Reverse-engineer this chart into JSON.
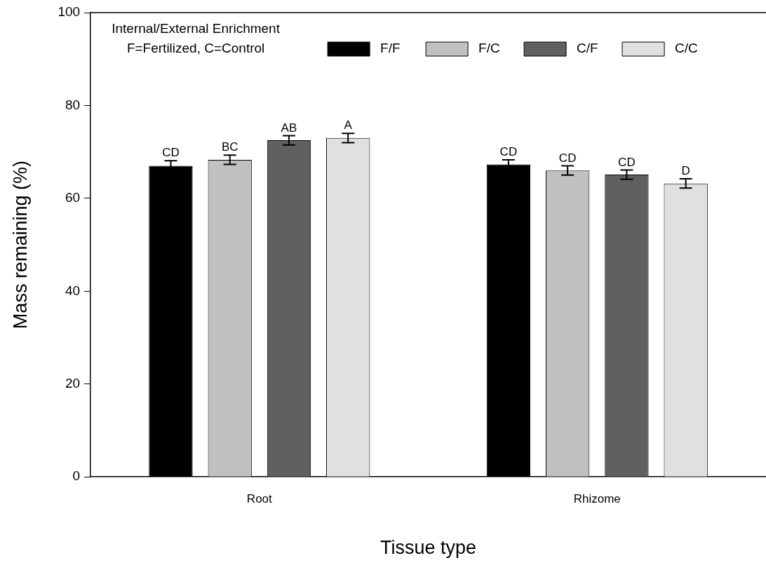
{
  "chart_data": {
    "type": "bar",
    "xlabel": "Tissue type",
    "ylabel": "Mass remaining (%)",
    "legend_title": "Internal/External Enrichment\nF=Fertilized, C=Control",
    "categories": [
      "Root",
      "Rhizome"
    ],
    "series": [
      {
        "name": "F/F",
        "color": "#000000",
        "values": [
          67.0,
          67.3
        ],
        "errors": [
          1.1,
          1.0
        ],
        "value_labels": [
          "CD",
          "CD"
        ]
      },
      {
        "name": "F/C",
        "color": "#c0c0c0",
        "values": [
          68.3,
          66.0
        ],
        "errors": [
          1.0,
          1.0
        ],
        "value_labels": [
          "BC",
          "CD"
        ]
      },
      {
        "name": "C/F",
        "color": "#606060",
        "values": [
          72.5,
          65.1
        ],
        "errors": [
          1.0,
          1.0
        ],
        "value_labels": [
          "AB",
          "CD"
        ]
      },
      {
        "name": "C/C",
        "color": "#e0e0e0",
        "values": [
          73.0,
          63.2
        ],
        "errors": [
          1.0,
          1.0
        ],
        "value_labels": [
          "A",
          "D"
        ]
      }
    ],
    "ylim": [
      0,
      100
    ],
    "yticks": [
      0,
      20,
      40,
      60,
      80,
      100
    ],
    "grid": false,
    "legend": "top"
  }
}
